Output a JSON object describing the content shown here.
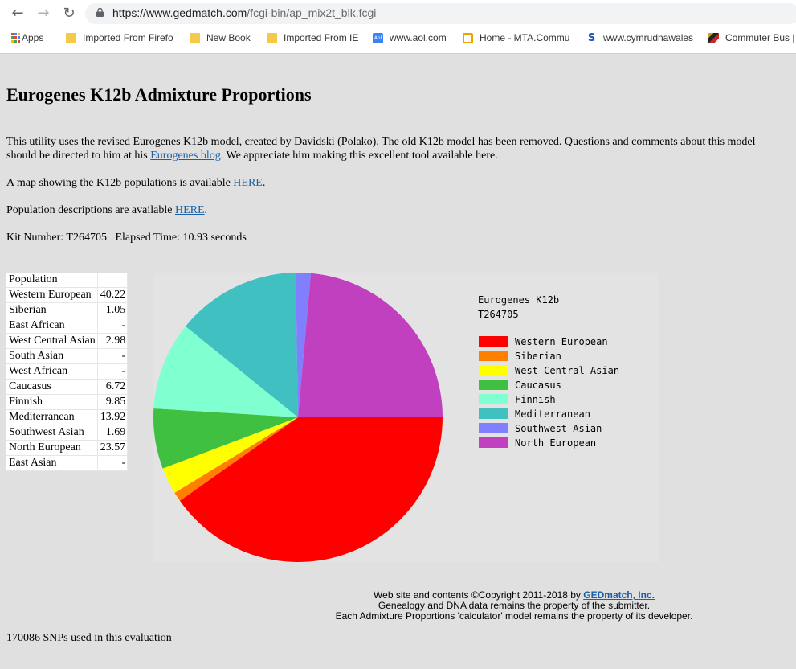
{
  "browser": {
    "url_host": "https://www.gedmatch.com",
    "url_path": "/fcgi-bin/ap_mix2t_blk.fcgi",
    "bookmarks": [
      {
        "label": "Apps",
        "icon": "apps-grid-icon"
      },
      {
        "label": "Imported From Firefo",
        "icon": "folder-icon"
      },
      {
        "label": "New Book",
        "icon": "folder-icon"
      },
      {
        "label": "Imported From IE",
        "icon": "folder-icon"
      },
      {
        "label": "www.aol.com",
        "icon": "aol-icon"
      },
      {
        "label": "Home - MTA.Commu",
        "icon": "mta-icon"
      },
      {
        "label": "www.cymrudnawales",
        "icon": "s-logo-icon"
      },
      {
        "label": "Commuter Bus |",
        "icon": "maryland-flag-icon"
      }
    ]
  },
  "page": {
    "title": "Eurogenes K12b Admixture Proportions",
    "intro_1": "This utility uses the revised Eurogenes K12b model, created by Davidski (Polako). The old K12b model has been removed. Questions and comments about this model",
    "intro_2_pre": "should be directed to him at his ",
    "intro_2_link": "Eurogenes blog",
    "intro_2_post": ". We appreciate him making this excellent tool available here.",
    "map_pre": "A map showing the K12b populations is available ",
    "map_link": "HERE",
    "map_post": ".",
    "desc_pre": "Population descriptions are available ",
    "desc_link": "HERE",
    "desc_post": ".",
    "kit_line": "Kit Number: T264705   Elapsed Time: 10.93 seconds",
    "table_header": "Population",
    "populations": [
      {
        "name": "Western European",
        "value": "40.22"
      },
      {
        "name": "Siberian",
        "value": "1.05"
      },
      {
        "name": "East African",
        "value": "-"
      },
      {
        "name": "West Central Asian",
        "value": "2.98"
      },
      {
        "name": "South Asian",
        "value": "-"
      },
      {
        "name": "West African",
        "value": "-"
      },
      {
        "name": "Caucasus",
        "value": "6.72"
      },
      {
        "name": "Finnish",
        "value": "9.85"
      },
      {
        "name": "Mediterranean",
        "value": "13.92"
      },
      {
        "name": "Southwest Asian",
        "value": "1.69"
      },
      {
        "name": "North European",
        "value": "23.57"
      },
      {
        "name": "East Asian",
        "value": "-"
      }
    ],
    "footer_pre": "Web site and contents ©Copyright 2011-2018 by ",
    "footer_link": "GEDmatch, Inc.",
    "footer_2": "Genealogy and DNA data remains the property of the submitter.",
    "footer_3": "Each Admixture Proportions 'calculator' model remains the property of its developer.",
    "snps": "170086 SNPs used in this evaluation"
  },
  "chart_data": {
    "type": "pie",
    "title": "Eurogenes K12b",
    "subtitle": "T264705",
    "series": [
      {
        "name": "Western European",
        "value": 40.22,
        "color": "#ff0000"
      },
      {
        "name": "Siberian",
        "value": 1.05,
        "color": "#ff8000"
      },
      {
        "name": "West Central Asian",
        "value": 2.98,
        "color": "#ffff00"
      },
      {
        "name": "Caucasus",
        "value": 6.72,
        "color": "#40c040"
      },
      {
        "name": "Finnish",
        "value": 9.85,
        "color": "#80ffd0"
      },
      {
        "name": "Mediterranean",
        "value": 13.92,
        "color": "#40c0c0"
      },
      {
        "name": "Southwest Asian",
        "value": 1.69,
        "color": "#8080ff"
      },
      {
        "name": "North European",
        "value": 23.57,
        "color": "#c040c0"
      }
    ],
    "legend_position": "right"
  }
}
